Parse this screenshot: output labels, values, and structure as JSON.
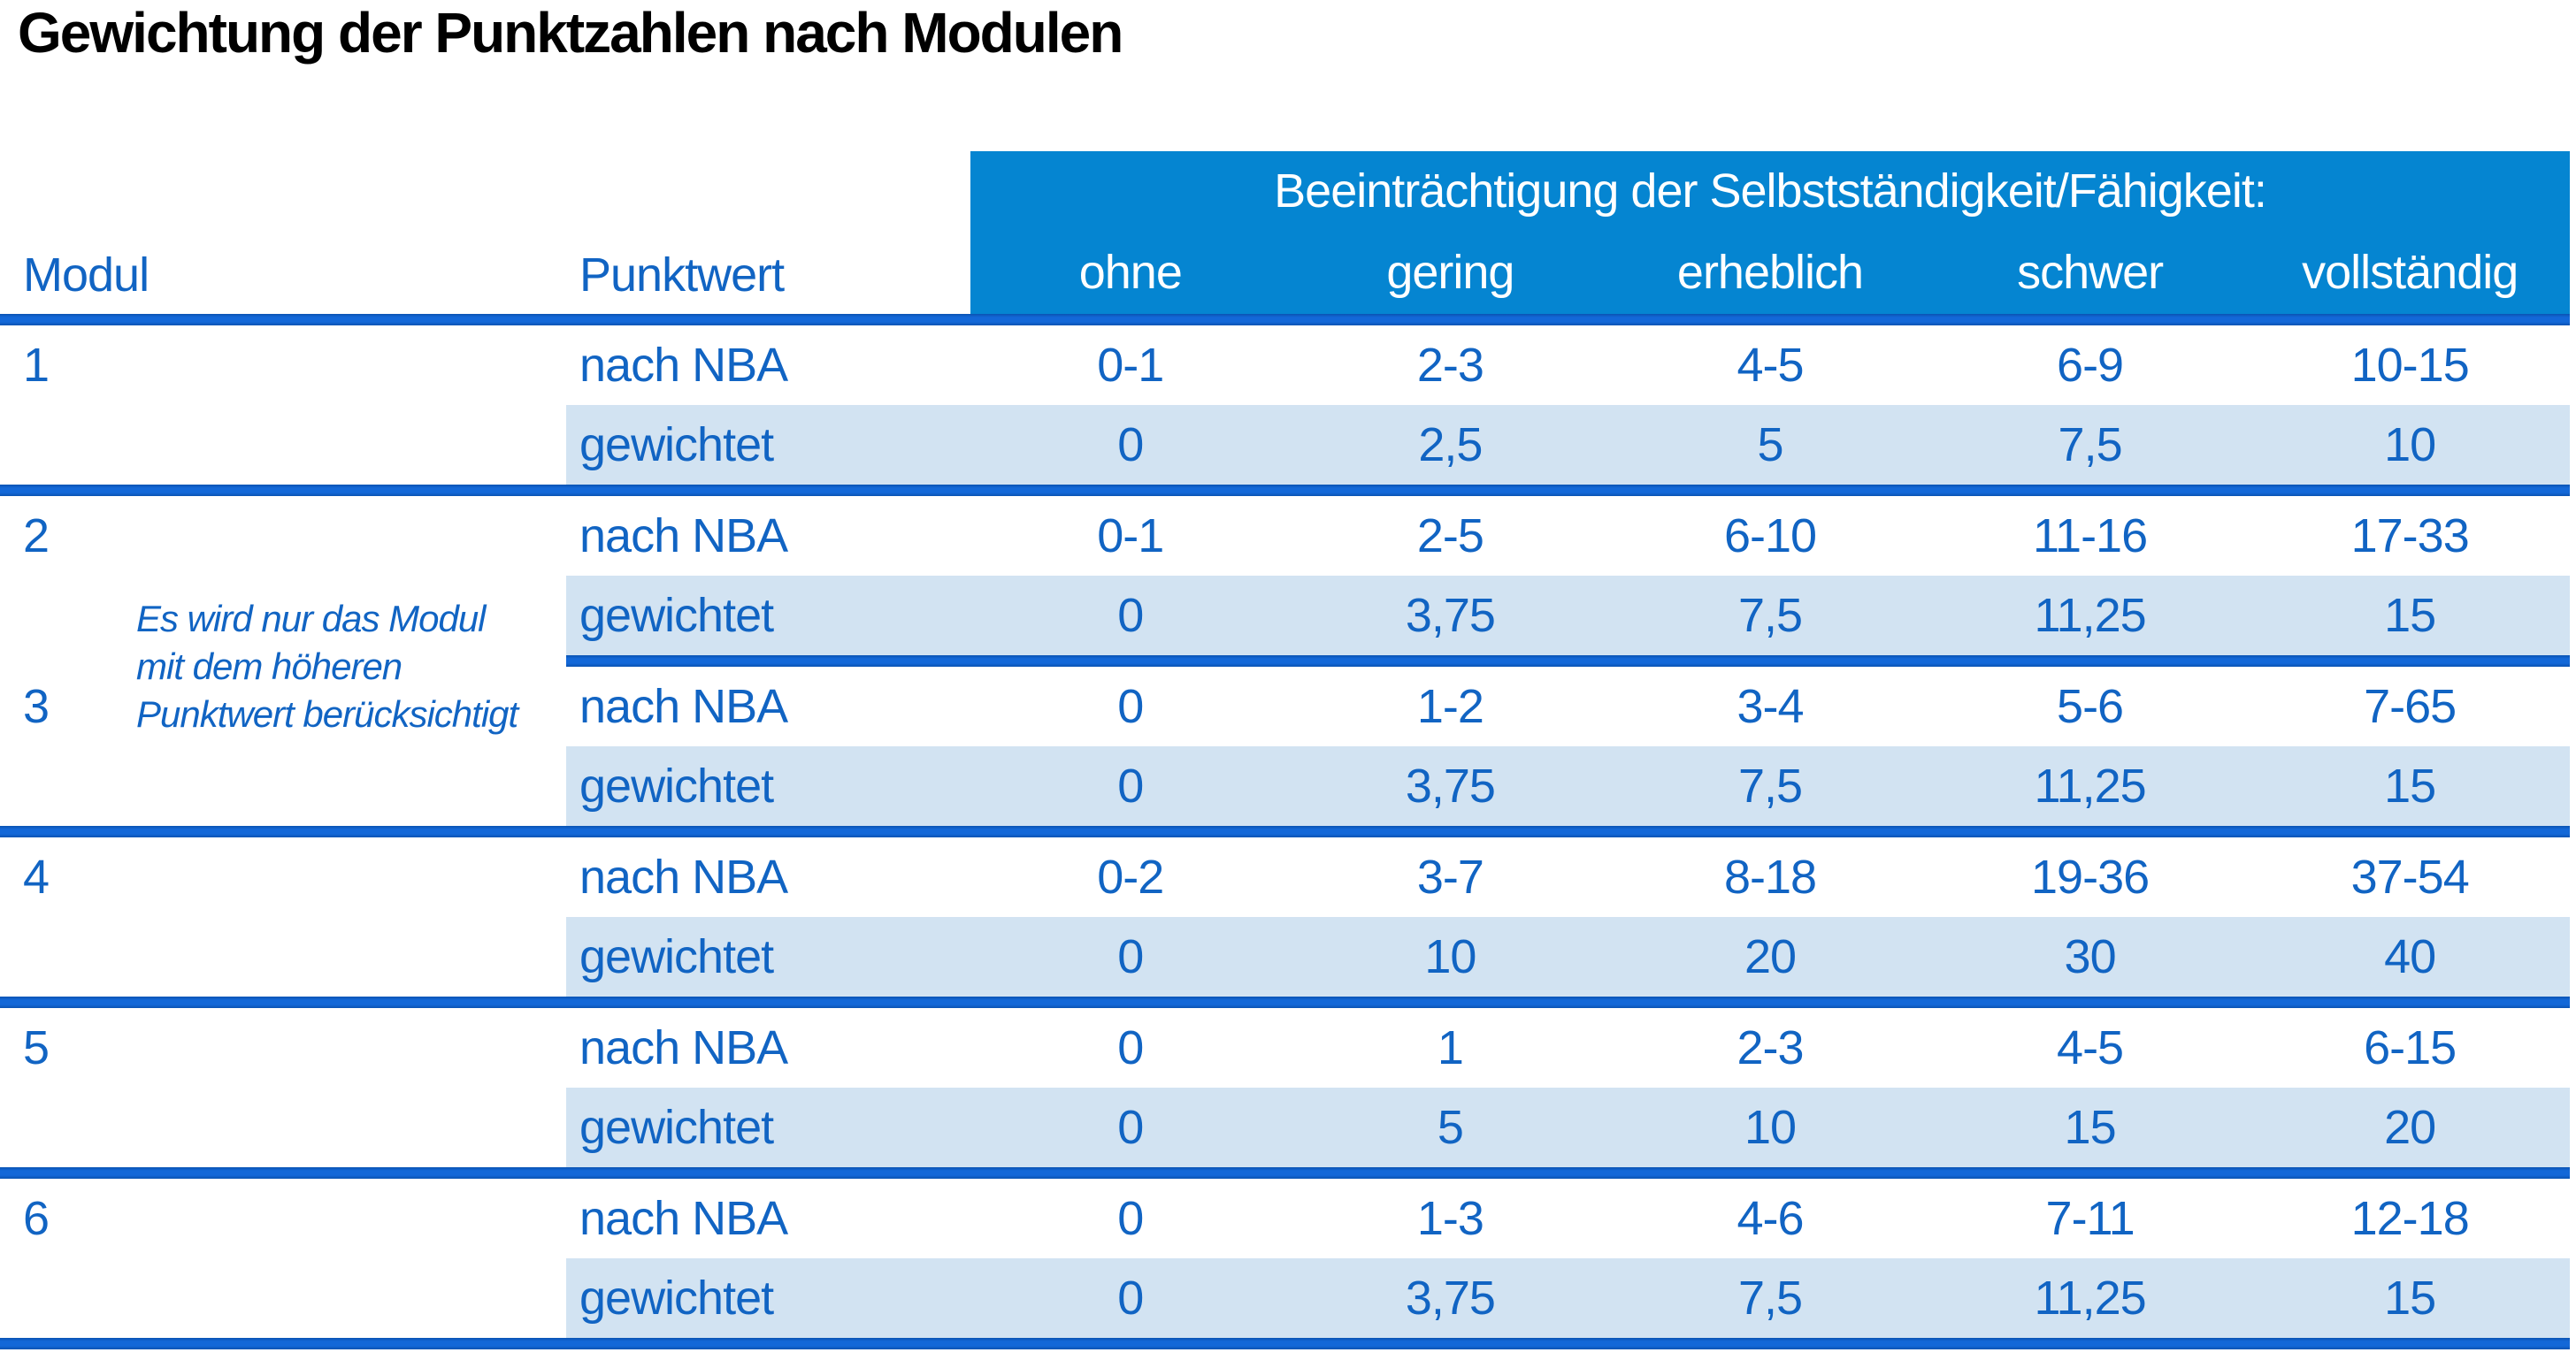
{
  "title": "Gewichtung der Punktzahlen nach Modulen",
  "header": {
    "impairment_label": "Beeinträchtigung der Selbstständigkeit/Fähigkeit:",
    "modul_label": "Modul",
    "punktwert_label": "Punktwert",
    "severity_columns": [
      "ohne",
      "gering",
      "erheblich",
      "schwer",
      "vollständig"
    ]
  },
  "colors": {
    "header_band_bg": "#0585d1",
    "stripe_bg": "#d2e3f2",
    "text_blue": "#1164c3",
    "divider_blue": "#1368d8",
    "title_color": "#000000"
  },
  "blocks": [
    {
      "modules": [
        {
          "modul": "1",
          "rows": [
            {
              "label": "nach NBA",
              "values": [
                "0-1",
                "2-3",
                "4-5",
                "6-9",
                "10-15"
              ]
            },
            {
              "label": "gewichtet",
              "values": [
                "0",
                "2,5",
                "5",
                "7,5",
                "10"
              ]
            }
          ]
        }
      ]
    },
    {
      "note_lines": [
        "Es wird nur das Modul",
        "mit dem höheren",
        "Punktwert berücksichtigt"
      ],
      "modules": [
        {
          "modul": "2",
          "rows": [
            {
              "label": "nach NBA",
              "values": [
                "0-1",
                "2-5",
                "6-10",
                "11-16",
                "17-33"
              ]
            },
            {
              "label": "gewichtet",
              "values": [
                "0",
                "3,75",
                "7,5",
                "11,25",
                "15"
              ]
            }
          ]
        },
        {
          "modul": "3",
          "rows": [
            {
              "label": "nach NBA",
              "values": [
                "0",
                "1-2",
                "3-4",
                "5-6",
                "7-65"
              ]
            },
            {
              "label": "gewichtet",
              "values": [
                "0",
                "3,75",
                "7,5",
                "11,25",
                "15"
              ]
            }
          ]
        }
      ]
    },
    {
      "modules": [
        {
          "modul": "4",
          "rows": [
            {
              "label": "nach NBA",
              "values": [
                "0-2",
                "3-7",
                "8-18",
                "19-36",
                "37-54"
              ]
            },
            {
              "label": "gewichtet",
              "values": [
                "0",
                "10",
                "20",
                "30",
                "40"
              ]
            }
          ]
        }
      ]
    },
    {
      "modules": [
        {
          "modul": "5",
          "rows": [
            {
              "label": "nach NBA",
              "values": [
                "0",
                "1",
                "2-3",
                "4-5",
                "6-15"
              ]
            },
            {
              "label": "gewichtet",
              "values": [
                "0",
                "5",
                "10",
                "15",
                "20"
              ]
            }
          ]
        }
      ]
    },
    {
      "modules": [
        {
          "modul": "6",
          "rows": [
            {
              "label": "nach NBA",
              "values": [
                "0",
                "1-3",
                "4-6",
                "7-11",
                "12-18"
              ]
            },
            {
              "label": "gewichtet",
              "values": [
                "0",
                "3,75",
                "7,5",
                "11,25",
                "15"
              ]
            }
          ]
        }
      ]
    }
  ]
}
